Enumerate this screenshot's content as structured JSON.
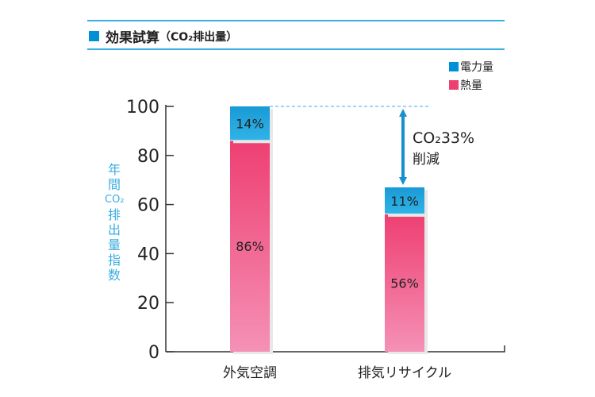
{
  "title": {
    "main": "効果試算",
    "sub": "（CO₂排出量）"
  },
  "chart_data": {
    "type": "bar",
    "stacked": true,
    "categories": [
      "外気空調",
      "排気リサイクル"
    ],
    "series": [
      {
        "name": "熱量",
        "values": [
          86,
          56
        ],
        "labels": [
          "86%",
          "56%"
        ],
        "color": "#ee3f72"
      },
      {
        "name": "電力量",
        "values": [
          14,
          11
        ],
        "labels": [
          "14%",
          "11%"
        ],
        "color": "#1a9ad6"
      }
    ],
    "ylabel": "年間CO₂排出量指数",
    "ylabel_chars": [
      "年",
      "間",
      "CO₂",
      "排",
      "出",
      "量",
      "指",
      "数"
    ],
    "ylim": [
      0,
      100
    ],
    "yticks": [
      0,
      20,
      40,
      60,
      80,
      100
    ],
    "legend_position": "top-right",
    "grid": false,
    "annotation": {
      "line1": "CO₂33%",
      "line2": "削減"
    }
  }
}
